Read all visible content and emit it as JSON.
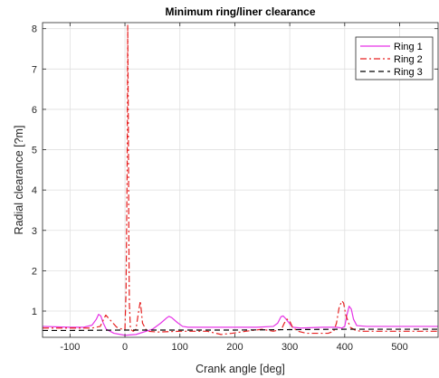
{
  "chart_data": {
    "type": "line",
    "title": "Minimum ring/liner clearance",
    "xlabel": "Crank angle [deg]",
    "ylabel": "Radial clearance [?m]",
    "xlim": [
      -150,
      570
    ],
    "ylim": [
      0.35,
      8.15
    ],
    "xticks": [
      -100,
      0,
      100,
      200,
      300,
      400,
      500
    ],
    "yticks": [
      1,
      2,
      3,
      4,
      5,
      6,
      7,
      8
    ],
    "grid": true,
    "legend_position": "top-right",
    "series": [
      {
        "name": "Ring 1",
        "color": "#e632e6",
        "style": "solid",
        "x": [
          -150,
          -100,
          -75,
          -60,
          -52,
          -48,
          -44,
          -40,
          -34,
          -20,
          0,
          20,
          50,
          65,
          75,
          80,
          85,
          95,
          105,
          115,
          130,
          160,
          200,
          240,
          270,
          278,
          284,
          288,
          292,
          298,
          305,
          320,
          360,
          385,
          395,
          400,
          404,
          408,
          412,
          416,
          422,
          440,
          500,
          570
        ],
        "y": [
          0.62,
          0.6,
          0.6,
          0.65,
          0.8,
          0.92,
          0.88,
          0.72,
          0.55,
          0.45,
          0.4,
          0.42,
          0.55,
          0.7,
          0.82,
          0.87,
          0.84,
          0.72,
          0.62,
          0.6,
          0.6,
          0.6,
          0.6,
          0.6,
          0.62,
          0.7,
          0.86,
          0.88,
          0.82,
          0.72,
          0.6,
          0.58,
          0.6,
          0.6,
          0.58,
          0.62,
          0.9,
          1.12,
          1.05,
          0.8,
          0.64,
          0.62,
          0.62,
          0.62
        ]
      },
      {
        "name": "Ring 2",
        "color": "#e62020",
        "style": "dashdot",
        "x": [
          -150,
          -60,
          -45,
          -35,
          -25,
          -15,
          -5,
          0,
          2,
          4,
          5,
          6,
          7,
          8,
          10,
          15,
          20,
          25,
          28,
          32,
          40,
          60,
          100,
          150,
          175,
          195,
          220,
          250,
          270,
          285,
          290,
          295,
          300,
          305,
          315,
          330,
          355,
          370,
          380,
          385,
          390,
          395,
          398,
          402,
          410,
          420,
          430,
          460,
          570
        ],
        "y": [
          0.58,
          0.58,
          0.62,
          0.9,
          0.75,
          0.6,
          0.55,
          0.55,
          1.5,
          4.5,
          8.1,
          6.0,
          3.0,
          1.2,
          0.55,
          0.5,
          0.55,
          1.0,
          1.25,
          0.7,
          0.5,
          0.48,
          0.5,
          0.5,
          0.42,
          0.45,
          0.5,
          0.55,
          0.5,
          0.55,
          0.7,
          0.8,
          0.75,
          0.6,
          0.5,
          0.45,
          0.45,
          0.45,
          0.5,
          0.7,
          1.1,
          1.25,
          1.2,
          0.9,
          0.6,
          0.52,
          0.5,
          0.5,
          0.5
        ]
      },
      {
        "name": "Ring 3",
        "color": "#000000",
        "style": "dashed",
        "x": [
          -150,
          -100,
          0,
          100,
          200,
          300,
          400,
          500,
          570
        ],
        "y": [
          0.52,
          0.52,
          0.53,
          0.53,
          0.53,
          0.54,
          0.55,
          0.55,
          0.55
        ]
      }
    ]
  }
}
